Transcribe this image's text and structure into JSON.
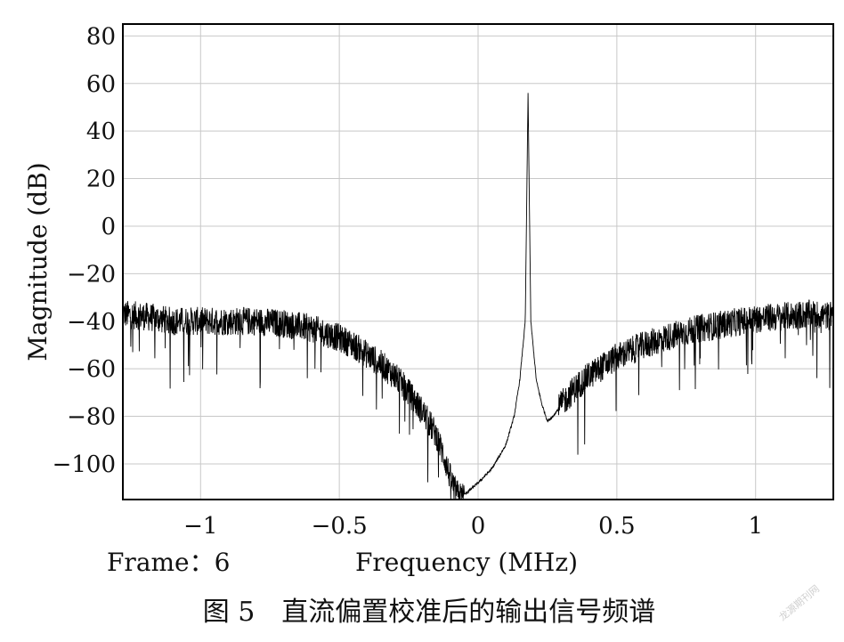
{
  "chart_data": {
    "type": "line",
    "xlabel": "Frequency (MHz)",
    "ylabel": "Magnitude (dB)",
    "xlim": [
      -1.28,
      1.28
    ],
    "ylim": [
      -115,
      85
    ],
    "x_ticks": [
      -1,
      -0.5,
      0,
      0.5,
      1
    ],
    "x_tick_labels": [
      "−1",
      "−0.5",
      "0",
      "0.5",
      "1"
    ],
    "y_ticks": [
      80,
      60,
      40,
      20,
      0,
      -20,
      -40,
      -60,
      -80,
      -100
    ],
    "y_tick_labels": [
      "80",
      "60",
      "40",
      "20",
      "0",
      "−20",
      "−40",
      "−60",
      "−80",
      "−100"
    ],
    "grid": true,
    "frame_label": "Frame：6",
    "caption": "图 5　直流偏置校准后的输出信号频谱",
    "watermark": "龙源期刊网",
    "series": [
      {
        "peak": {
          "x": 0.18,
          "y": 56
        },
        "x": [
          -1.28,
          -1.2,
          -1.1,
          -1.0,
          -0.9,
          -0.8,
          -0.7,
          -0.6,
          -0.5,
          -0.45,
          -0.4,
          -0.35,
          -0.3,
          -0.25,
          -0.2,
          -0.15,
          -0.12,
          -0.1,
          -0.08,
          -0.06,
          0.0,
          0.05,
          0.1,
          0.13,
          0.15,
          0.17,
          0.18,
          0.19,
          0.21,
          0.23,
          0.25,
          0.27,
          0.3,
          0.35,
          0.4,
          0.5,
          0.6,
          0.7,
          0.8,
          0.9,
          1.0,
          1.1,
          1.2,
          1.28
        ],
        "y": [
          -37,
          -38,
          -40,
          -40,
          -40,
          -40,
          -41,
          -43,
          -47,
          -50,
          -54,
          -58,
          -63,
          -70,
          -78,
          -88,
          -98,
          -106,
          -112,
          -114,
          -108,
          -102,
          -92,
          -80,
          -65,
          -40,
          56,
          -40,
          -65,
          -75,
          -82,
          -80,
          -75,
          -68,
          -63,
          -55,
          -50,
          -46,
          -43,
          -41,
          -39,
          -38,
          -37,
          -38
        ]
      }
    ]
  }
}
